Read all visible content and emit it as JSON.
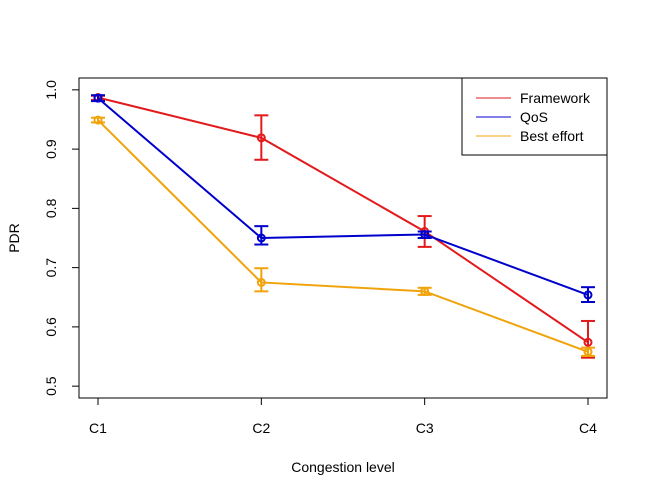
{
  "chart_data": {
    "type": "line",
    "title": "",
    "xlabel": "Congestion level",
    "ylabel": "PDR",
    "categories": [
      "C1",
      "C2",
      "C3",
      "C4"
    ],
    "ylim": [
      0.48,
      1.02
    ],
    "yticks": [
      "0.5",
      "0.6",
      "0.7",
      "0.8",
      "0.9",
      "1.0"
    ],
    "grid": false,
    "legend_position": "top-right",
    "series": [
      {
        "name": "Framework",
        "color": "#e31a1c",
        "values": [
          0.987,
          0.919,
          0.761,
          0.574
        ],
        "err_low": [
          0.983,
          0.882,
          0.735,
          0.548
        ],
        "err_high": [
          0.99,
          0.957,
          0.787,
          0.61
        ]
      },
      {
        "name": "QoS",
        "color": "#0000cc",
        "values": [
          0.986,
          0.75,
          0.756,
          0.654
        ],
        "err_low": [
          0.981,
          0.739,
          0.75,
          0.642
        ],
        "err_high": [
          0.991,
          0.77,
          0.761,
          0.667
        ]
      },
      {
        "name": "Best effort",
        "color": "#f0a30a",
        "values": [
          0.949,
          0.675,
          0.66,
          0.558
        ],
        "err_low": [
          0.945,
          0.66,
          0.654,
          0.551
        ],
        "err_high": [
          0.953,
          0.699,
          0.666,
          0.565
        ]
      }
    ]
  }
}
